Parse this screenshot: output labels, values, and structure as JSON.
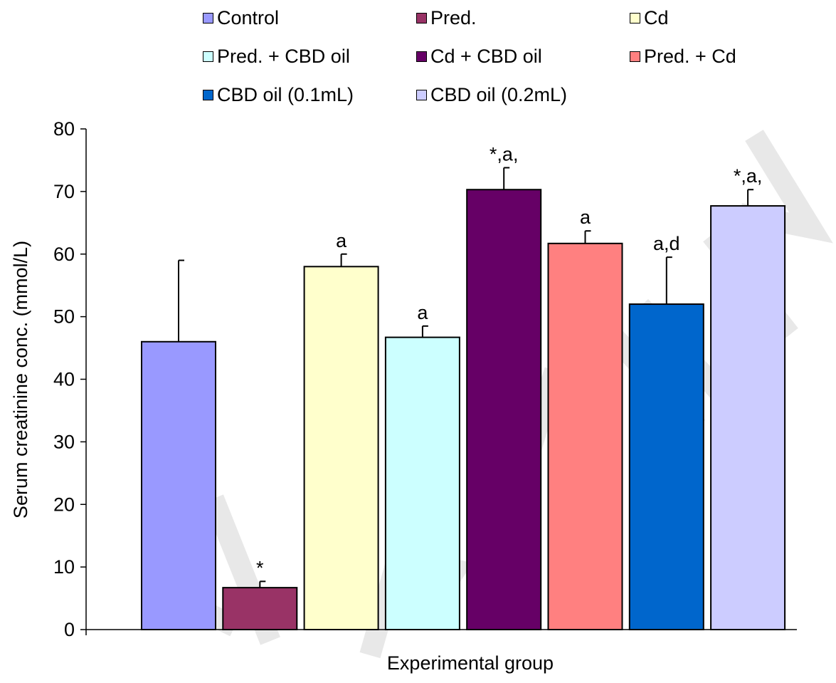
{
  "chart_data": {
    "type": "bar",
    "title": "",
    "xlabel": "Experimental group",
    "ylabel": "Serum creatinine conc. (mmol/L)",
    "ylim": [
      0,
      80
    ],
    "yticks": [
      0,
      10,
      20,
      30,
      40,
      50,
      60,
      70,
      80
    ],
    "grid": false,
    "legend_position": "top",
    "categories": [
      "Control",
      "Pred.",
      "Cd",
      "Pred. + CBD oil",
      "Cd + CBD oil",
      "Pred. + Cd",
      "CBD oil (0.1mL)",
      "CBD oil (0.2mL)"
    ],
    "values": [
      46,
      6.7,
      58,
      46.7,
      70.3,
      61.7,
      52,
      67.7
    ],
    "errors": [
      13,
      1.0,
      2.0,
      1.8,
      3.5,
      2.0,
      7.5,
      2.6
    ],
    "annotations": [
      "",
      "*",
      "a",
      "a",
      "*,a,",
      "a",
      "a,d",
      "*,a,"
    ],
    "colors": [
      "#9999ff",
      "#993366",
      "#ffffcc",
      "#ccffff",
      "#660066",
      "#ff8080",
      "#0066cc",
      "#ccccff"
    ]
  }
}
